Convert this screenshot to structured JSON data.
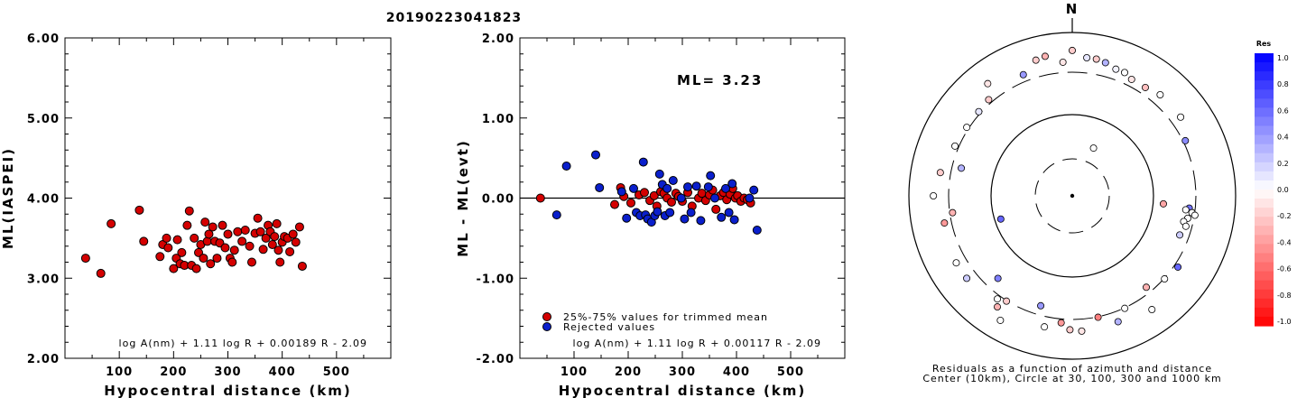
{
  "title": "20190223041823",
  "colors": {
    "accepted": "#d40000",
    "rejected": "#0a1fcc"
  },
  "chart_data": [
    {
      "type": "scatter",
      "xlabel": "Hypocentral distance (km)",
      "ylabel": "ML(IASPEI)",
      "xlim": [
        0,
        600
      ],
      "ylim": [
        2.0,
        6.0
      ],
      "xticks": [
        "100",
        "200",
        "300",
        "400",
        "500"
      ],
      "yticks": [
        "2.00",
        "3.00",
        "4.00",
        "5.00",
        "6.00"
      ],
      "formula": "log A(nm) + 1.11 log R + 0.00189 R - 2.09",
      "points": [
        [
          38,
          3.25
        ],
        [
          66,
          3.06
        ],
        [
          85,
          3.68
        ],
        [
          137,
          3.85
        ],
        [
          145,
          3.46
        ],
        [
          175,
          3.27
        ],
        [
          180,
          3.42
        ],
        [
          187,
          3.5
        ],
        [
          190,
          3.38
        ],
        [
          200,
          3.12
        ],
        [
          205,
          3.25
        ],
        [
          207,
          3.48
        ],
        [
          212,
          3.18
        ],
        [
          215,
          3.32
        ],
        [
          220,
          3.16
        ],
        [
          225,
          3.66
        ],
        [
          229,
          3.84
        ],
        [
          233,
          3.16
        ],
        [
          238,
          3.5
        ],
        [
          242,
          3.12
        ],
        [
          246,
          3.32
        ],
        [
          250,
          3.42
        ],
        [
          255,
          3.25
        ],
        [
          258,
          3.7
        ],
        [
          262,
          3.46
        ],
        [
          265,
          3.55
        ],
        [
          268,
          3.18
        ],
        [
          272,
          3.64
        ],
        [
          276,
          3.46
        ],
        [
          280,
          3.25
        ],
        [
          285,
          3.44
        ],
        [
          290,
          3.66
        ],
        [
          295,
          3.38
        ],
        [
          300,
          3.55
        ],
        [
          304,
          3.25
        ],
        [
          308,
          3.2
        ],
        [
          312,
          3.35
        ],
        [
          318,
          3.58
        ],
        [
          326,
          3.46
        ],
        [
          332,
          3.6
        ],
        [
          340,
          3.4
        ],
        [
          344,
          3.2
        ],
        [
          350,
          3.56
        ],
        [
          355,
          3.75
        ],
        [
          360,
          3.58
        ],
        [
          365,
          3.36
        ],
        [
          370,
          3.5
        ],
        [
          374,
          3.66
        ],
        [
          378,
          3.58
        ],
        [
          382,
          3.42
        ],
        [
          386,
          3.52
        ],
        [
          390,
          3.68
        ],
        [
          393,
          3.35
        ],
        [
          396,
          3.2
        ],
        [
          400,
          3.45
        ],
        [
          404,
          3.52
        ],
        [
          410,
          3.5
        ],
        [
          414,
          3.33
        ],
        [
          420,
          3.55
        ],
        [
          425,
          3.45
        ],
        [
          432,
          3.64
        ],
        [
          437,
          3.15
        ]
      ]
    },
    {
      "type": "scatter",
      "xlabel": "Hypocentral distance (km)",
      "ylabel": "ML - ML(evt)",
      "xlim": [
        0,
        600
      ],
      "ylim": [
        -2.0,
        2.0
      ],
      "xticks": [
        "100",
        "200",
        "300",
        "400",
        "500"
      ],
      "yticks": [
        "-2.00",
        "-1.00",
        "0.00",
        "1.00",
        "2.00"
      ],
      "annotation": "ML= 3.23",
      "formula": "log A(nm) + 1.11 log R + 0.00117 R - 2.09",
      "legend": [
        "25%-75% values for trimmed mean",
        "Rejected values"
      ],
      "series": [
        {
          "name": "25%-75% values for trimmed mean",
          "points": [
            [
              38,
              0.0
            ],
            [
              175,
              -0.08
            ],
            [
              186,
              0.13
            ],
            [
              192,
              0.02
            ],
            [
              205,
              -0.06
            ],
            [
              220,
              0.04
            ],
            [
              230,
              0.07
            ],
            [
              240,
              -0.03
            ],
            [
              248,
              0.03
            ],
            [
              253,
              -0.1
            ],
            [
              260,
              0.08
            ],
            [
              266,
              0.06
            ],
            [
              272,
              0.0
            ],
            [
              280,
              -0.05
            ],
            [
              288,
              0.06
            ],
            [
              293,
              0.02
            ],
            [
              300,
              -0.04
            ],
            [
              310,
              0.07
            ],
            [
              318,
              -0.1
            ],
            [
              330,
              0.0
            ],
            [
              336,
              0.06
            ],
            [
              343,
              -0.03
            ],
            [
              350,
              0.04
            ],
            [
              356,
              0.1
            ],
            [
              362,
              -0.14
            ],
            [
              370,
              0.03
            ],
            [
              376,
              0.07
            ],
            [
              382,
              -0.02
            ],
            [
              388,
              0.05
            ],
            [
              393,
              0.12
            ],
            [
              398,
              0.0
            ],
            [
              402,
              0.03
            ],
            [
              408,
              -0.04
            ],
            [
              414,
              0.0
            ],
            [
              420,
              -0.02
            ],
            [
              426,
              -0.06
            ]
          ]
        },
        {
          "name": "Rejected values",
          "points": [
            [
              68,
              -0.21
            ],
            [
              86,
              0.4
            ],
            [
              140,
              0.54
            ],
            [
              147,
              0.13
            ],
            [
              188,
              0.08
            ],
            [
              197,
              -0.25
            ],
            [
              210,
              0.12
            ],
            [
              215,
              -0.18
            ],
            [
              222,
              -0.22
            ],
            [
              228,
              0.45
            ],
            [
              232,
              -0.21
            ],
            [
              236,
              -0.26
            ],
            [
              243,
              -0.3
            ],
            [
              249,
              -0.22
            ],
            [
              254,
              -0.17
            ],
            [
              258,
              0.3
            ],
            [
              263,
              0.17
            ],
            [
              268,
              -0.22
            ],
            [
              272,
              0.12
            ],
            [
              277,
              -0.18
            ],
            [
              283,
              0.22
            ],
            [
              298,
              0.0
            ],
            [
              304,
              -0.26
            ],
            [
              310,
              0.14
            ],
            [
              316,
              -0.18
            ],
            [
              326,
              0.15
            ],
            [
              334,
              -0.28
            ],
            [
              348,
              0.14
            ],
            [
              352,
              0.28
            ],
            [
              360,
              0.0
            ],
            [
              372,
              -0.24
            ],
            [
              380,
              0.12
            ],
            [
              386,
              -0.18
            ],
            [
              392,
              0.18
            ],
            [
              396,
              -0.27
            ],
            [
              424,
              0.0
            ],
            [
              432,
              0.1
            ],
            [
              438,
              -0.4
            ]
          ]
        }
      ]
    },
    {
      "type": "scatter",
      "subtype": "polar",
      "north_label": "N",
      "caption": [
        "Residuals as a function of azimuth and distance",
        "Center (10km), Circle at 30, 100, 300 and 1000 km"
      ],
      "colorbar": {
        "title": "Res",
        "ticks": [
          "1.0",
          "0.8",
          "0.6",
          "0.4",
          "0.2",
          "0.0",
          "-0.2",
          "-0.4",
          "-0.6",
          "-0.8",
          "-1.0"
        ]
      },
      "stations": [
        [
          6,
          0.85,
          0.1
        ],
        [
          10,
          0.85,
          -0.2
        ],
        [
          14,
          0.84,
          0.3
        ],
        [
          19,
          0.82,
          0.05
        ],
        [
          23,
          0.82,
          0.0
        ],
        [
          27,
          0.8,
          -0.1
        ],
        [
          34,
          0.8,
          -0.25
        ],
        [
          41,
          0.82,
          0.0
        ],
        [
          54,
          0.82,
          0.0
        ],
        [
          64,
          0.77,
          0.45
        ],
        [
          95,
          0.56,
          -0.35
        ],
        [
          96,
          0.72,
          0.55
        ],
        [
          97,
          0.7,
          0.0
        ],
        [
          98,
          0.74,
          0.0
        ],
        [
          99,
          0.76,
          0.0
        ],
        [
          101,
          0.72,
          0.0
        ],
        [
          103,
          0.7,
          0.0
        ],
        [
          105,
          0.72,
          0.0
        ],
        [
          110,
          0.7,
          0.2
        ],
        [
          124,
          0.78,
          0.6
        ],
        [
          132,
          0.76,
          0.0
        ],
        [
          141,
          0.72,
          -0.3
        ],
        [
          145,
          0.85,
          0.0
        ],
        [
          155,
          0.76,
          0.0
        ],
        [
          160,
          0.82,
          0.3
        ],
        [
          168,
          0.76,
          -0.5
        ],
        [
          176,
          0.83,
          -0.1
        ],
        [
          181,
          0.82,
          -0.2
        ],
        [
          185,
          0.78,
          -0.4
        ],
        [
          192,
          0.82,
          0.0
        ],
        [
          196,
          0.7,
          0.4
        ],
        [
          210,
          0.88,
          0.0
        ],
        [
          212,
          0.76,
          -0.2
        ],
        [
          214,
          0.82,
          -0.3
        ],
        [
          216,
          0.78,
          0.0
        ],
        [
          222,
          0.68,
          0.5
        ],
        [
          232,
          0.82,
          0.2
        ],
        [
          240,
          0.82,
          0.0
        ],
        [
          252,
          0.46,
          0.6
        ],
        [
          258,
          0.8,
          -0.4
        ],
        [
          262,
          0.74,
          -0.3
        ],
        [
          270,
          0.85,
          0.0
        ],
        [
          280,
          0.82,
          -0.2
        ],
        [
          284,
          0.7,
          0.3
        ],
        [
          293,
          0.78,
          0.0
        ],
        [
          303,
          0.77,
          0.0
        ],
        [
          312,
          0.77,
          0.1
        ],
        [
          319,
          0.78,
          -0.2
        ],
        [
          323,
          0.86,
          -0.1
        ],
        [
          338,
          0.8,
          0.4
        ],
        [
          345,
          0.86,
          -0.2
        ],
        [
          356,
          0.82,
          -0.1
        ],
        [
          24,
          0.32,
          0.0
        ],
        [
          349,
          0.87,
          -0.3
        ],
        [
          360,
          0.89,
          -0.2
        ]
      ]
    }
  ]
}
